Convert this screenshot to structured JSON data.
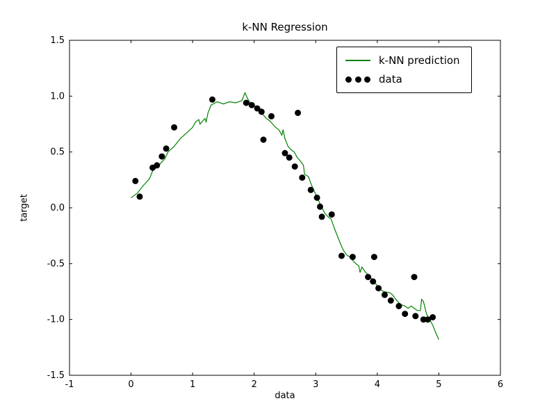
{
  "figure": {
    "title": "k-NN Regression",
    "xlabel": "data",
    "ylabel": "target"
  },
  "legend": {
    "position": "upper right",
    "entries": [
      {
        "label": "k-NN prediction",
        "type": "line",
        "color": "#008000"
      },
      {
        "label": "data",
        "type": "scatter",
        "color": "#000000"
      }
    ]
  },
  "chart_data": {
    "type": "line",
    "title": "k-NN Regression",
    "xlabel": "data",
    "ylabel": "target",
    "xlim": [
      -1,
      6
    ],
    "ylim": [
      -1.5,
      1.5
    ],
    "xticks": [
      -1,
      0,
      1,
      2,
      3,
      4,
      5,
      6
    ],
    "xtick_labels": [
      "-1",
      "0",
      "1",
      "2",
      "3",
      "4",
      "5",
      "6"
    ],
    "yticks": [
      -1.5,
      -1.0,
      -0.5,
      0.0,
      0.5,
      1.0,
      1.5
    ],
    "ytick_labels": [
      "-1.5",
      "-1.0",
      "-0.5",
      "0.0",
      "0.5",
      "1.0",
      "1.5"
    ],
    "grid": false,
    "legend_position": "upper right",
    "series": [
      {
        "name": "k-NN prediction",
        "type": "line",
        "color": "#008000",
        "x": [
          0.0,
          0.1,
          0.2,
          0.3,
          0.35,
          0.45,
          0.55,
          0.6,
          0.7,
          0.8,
          0.9,
          1.0,
          1.05,
          1.1,
          1.12,
          1.2,
          1.22,
          1.25,
          1.3,
          1.4,
          1.5,
          1.6,
          1.7,
          1.8,
          1.85,
          1.9,
          1.95,
          2.0,
          2.05,
          2.1,
          2.15,
          2.2,
          2.25,
          2.3,
          2.35,
          2.4,
          2.45,
          2.47,
          2.5,
          2.55,
          2.6,
          2.65,
          2.7,
          2.75,
          2.8,
          2.82,
          2.88,
          2.92,
          2.95,
          3.0,
          3.05,
          3.1,
          3.15,
          3.2,
          3.25,
          3.3,
          3.35,
          3.4,
          3.45,
          3.5,
          3.55,
          3.6,
          3.65,
          3.7,
          3.72,
          3.75,
          3.8,
          3.85,
          3.9,
          3.95,
          4.0,
          4.05,
          4.1,
          4.2,
          4.25,
          4.3,
          4.35,
          4.4,
          4.45,
          4.5,
          4.55,
          4.6,
          4.65,
          4.7,
          4.72,
          4.75,
          4.8,
          4.85,
          4.9,
          4.95,
          5.0
        ],
        "y": [
          0.09,
          0.13,
          0.2,
          0.26,
          0.33,
          0.38,
          0.44,
          0.5,
          0.55,
          0.62,
          0.67,
          0.72,
          0.77,
          0.79,
          0.75,
          0.8,
          0.77,
          0.85,
          0.92,
          0.95,
          0.93,
          0.95,
          0.94,
          0.96,
          1.03,
          0.97,
          0.93,
          0.92,
          0.89,
          0.86,
          0.83,
          0.8,
          0.78,
          0.75,
          0.72,
          0.7,
          0.65,
          0.7,
          0.62,
          0.55,
          0.52,
          0.5,
          0.45,
          0.42,
          0.38,
          0.3,
          0.28,
          0.22,
          0.18,
          0.12,
          0.06,
          0.0,
          -0.05,
          -0.08,
          -0.1,
          -0.18,
          -0.25,
          -0.32,
          -0.38,
          -0.42,
          -0.44,
          -0.47,
          -0.5,
          -0.52,
          -0.58,
          -0.53,
          -0.57,
          -0.6,
          -0.63,
          -0.66,
          -0.7,
          -0.73,
          -0.75,
          -0.76,
          -0.78,
          -0.82,
          -0.85,
          -0.87,
          -0.88,
          -0.9,
          -0.88,
          -0.9,
          -0.92,
          -0.92,
          -0.82,
          -0.84,
          -0.95,
          -1.0,
          -1.05,
          -1.12,
          -1.18
        ]
      },
      {
        "name": "data",
        "type": "scatter",
        "color": "#000000",
        "x": [
          0.07,
          0.14,
          0.35,
          0.42,
          0.5,
          0.57,
          0.7,
          1.32,
          1.87,
          1.96,
          2.05,
          2.12,
          2.15,
          2.28,
          2.5,
          2.57,
          2.66,
          2.71,
          2.78,
          2.92,
          3.02,
          3.07,
          3.1,
          3.26,
          3.42,
          3.6,
          3.85,
          3.93,
          3.95,
          4.02,
          4.12,
          4.22,
          4.35,
          4.45,
          4.6,
          4.62,
          4.75,
          4.82,
          4.9
        ],
        "y": [
          0.24,
          0.1,
          0.36,
          0.38,
          0.46,
          0.53,
          0.72,
          0.97,
          0.94,
          0.92,
          0.89,
          0.86,
          0.61,
          0.82,
          0.49,
          0.45,
          0.37,
          0.85,
          0.27,
          0.16,
          0.09,
          0.01,
          -0.08,
          -0.06,
          -0.43,
          -0.44,
          -0.62,
          -0.66,
          -0.44,
          -0.72,
          -0.78,
          -0.83,
          -0.88,
          -0.95,
          -0.62,
          -0.97,
          -1.0,
          -1.0,
          -0.98
        ]
      }
    ]
  }
}
